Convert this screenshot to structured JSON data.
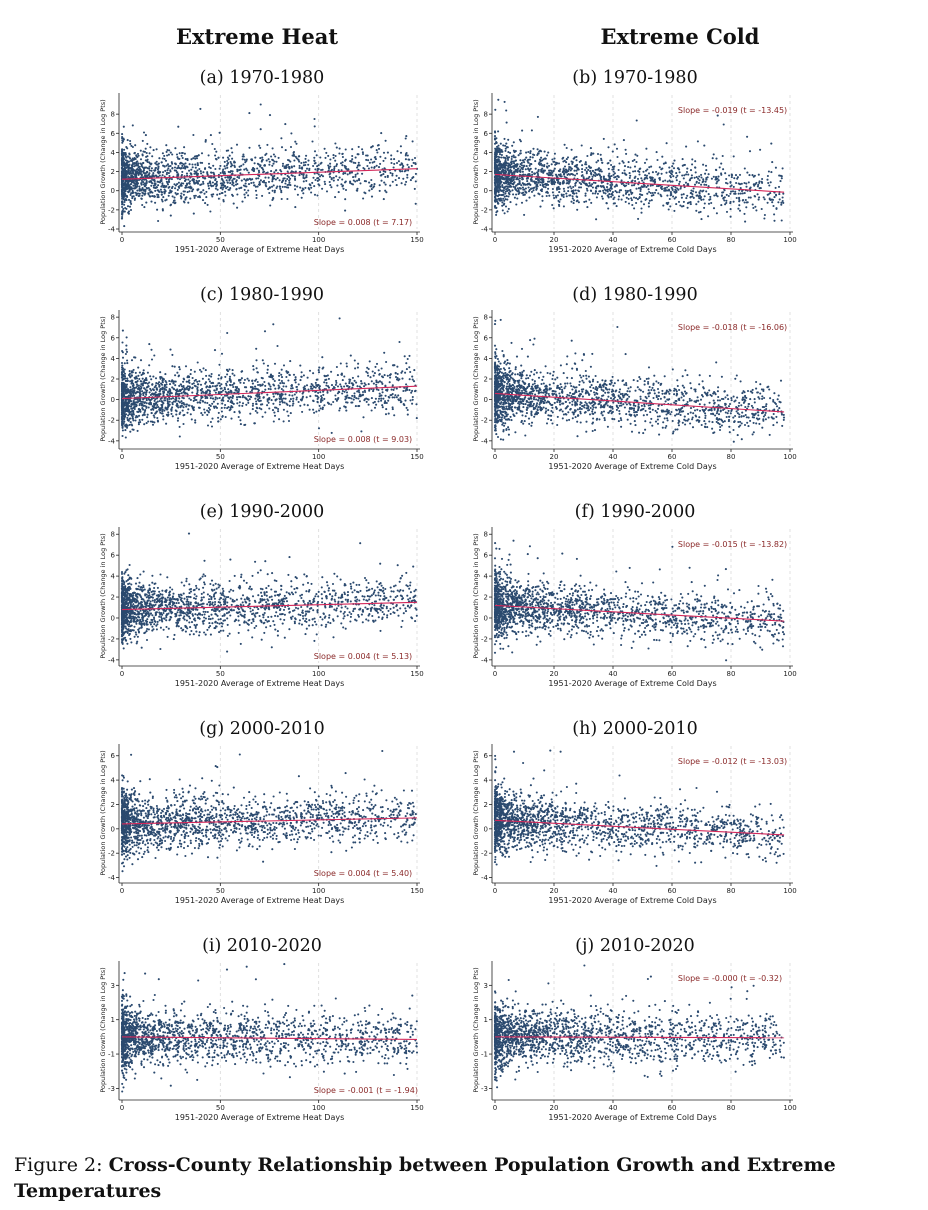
{
  "headers": {
    "heat": "Extreme Heat",
    "cold": "Extreme Cold"
  },
  "caption": {
    "prefix": "Figure 2: ",
    "title": "Cross-County Relationship between Population Growth and Extreme Temperatures"
  },
  "colors": {
    "points": "#2b4a6f",
    "fit": "#d3285a",
    "slope_text": "#8b2a2a",
    "grid": "#d9d9d9"
  },
  "chart_data": [
    {
      "id": "a",
      "type": "scatter",
      "title": "(a) 1970-1980",
      "xlabel": "1951-2020 Average of Extreme Heat Days",
      "ylabel": "Population Growth (Change in Log Pts)",
      "xlim": [
        0,
        150
      ],
      "ylim": [
        -4,
        10
      ],
      "xticks": [
        0,
        50,
        100,
        150
      ],
      "yticks": [
        -4,
        -2,
        0,
        2,
        4,
        6,
        8
      ],
      "fit": {
        "x": [
          0,
          150
        ],
        "y": [
          1.2,
          2.3
        ]
      },
      "slope_label": "Slope = 0.008 (t = 7.17)",
      "slope_pos": "bottom-right",
      "n_points": 1900
    },
    {
      "id": "b",
      "type": "scatter",
      "title": "(b) 1970-1980",
      "xlabel": "1951-2020 Average of Extreme Cold Days",
      "ylabel": "Population Growth (Change in Log Pts)",
      "xlim": [
        0,
        100
      ],
      "ylim": [
        -4,
        10
      ],
      "xticks": [
        0,
        20,
        40,
        60,
        80,
        100
      ],
      "yticks": [
        -4,
        -2,
        0,
        2,
        4,
        6,
        8
      ],
      "fit": {
        "x": [
          0,
          98
        ],
        "y": [
          1.7,
          -0.15
        ]
      },
      "slope_label": "Slope = -0.019 (t = -13.45)",
      "slope_pos": "top-right",
      "n_points": 1900
    },
    {
      "id": "c",
      "type": "scatter",
      "title": "(c) 1980-1990",
      "xlabel": "1951-2020 Average of Extreme Heat Days",
      "ylabel": "Population Growth (Change in Log Pts)",
      "xlim": [
        0,
        150
      ],
      "ylim": [
        -4.5,
        8.5
      ],
      "xticks": [
        0,
        50,
        100,
        150
      ],
      "yticks": [
        -4,
        -2,
        0,
        2,
        4,
        6,
        8
      ],
      "fit": {
        "x": [
          0,
          150
        ],
        "y": [
          0.1,
          1.3
        ]
      },
      "slope_label": "Slope = 0.008 (t = 9.03)",
      "slope_pos": "bottom-right",
      "n_points": 1900
    },
    {
      "id": "d",
      "type": "scatter",
      "title": "(d) 1980-1990",
      "xlabel": "1951-2020 Average of Extreme Cold Days",
      "ylabel": "Population Growth (Change in Log Pts)",
      "xlim": [
        0,
        100
      ],
      "ylim": [
        -4.5,
        8.5
      ],
      "xticks": [
        0,
        20,
        40,
        60,
        80,
        100
      ],
      "yticks": [
        -4,
        -2,
        0,
        2,
        4,
        6,
        8
      ],
      "fit": {
        "x": [
          0,
          98
        ],
        "y": [
          0.6,
          -1.2
        ]
      },
      "slope_label": "Slope = -0.018 (t = -16.06)",
      "slope_pos": "top-right",
      "n_points": 1900
    },
    {
      "id": "e",
      "type": "scatter",
      "title": "(e) 1990-2000",
      "xlabel": "1951-2020 Average of Extreme Heat Days",
      "ylabel": "Population Growth (Change in Log Pts)",
      "xlim": [
        0,
        150
      ],
      "ylim": [
        -4.3,
        8.5
      ],
      "xticks": [
        0,
        50,
        100,
        150
      ],
      "yticks": [
        -4,
        -2,
        0,
        2,
        4,
        6,
        8
      ],
      "fit": {
        "x": [
          0,
          150
        ],
        "y": [
          0.8,
          1.5
        ]
      },
      "slope_label": "Slope = 0.004 (t = 5.13)",
      "slope_pos": "bottom-right",
      "n_points": 1900
    },
    {
      "id": "f",
      "type": "scatter",
      "title": "(f) 1990-2000",
      "xlabel": "1951-2020 Average of Extreme Cold Days",
      "ylabel": "Population Growth (Change in Log Pts)",
      "xlim": [
        0,
        100
      ],
      "ylim": [
        -4.3,
        8.5
      ],
      "xticks": [
        0,
        20,
        40,
        60,
        80,
        100
      ],
      "yticks": [
        -4,
        -2,
        0,
        2,
        4,
        6,
        8
      ],
      "fit": {
        "x": [
          0,
          98
        ],
        "y": [
          1.2,
          -0.3
        ]
      },
      "slope_label": "Slope = -0.015 (t = -13.82)",
      "slope_pos": "top-right",
      "n_points": 1900
    },
    {
      "id": "g",
      "type": "scatter",
      "title": "(g) 2000-2010",
      "xlabel": "1951-2020 Average of Extreme Heat Days",
      "ylabel": "Population Growth (Change in Log Pts)",
      "xlim": [
        0,
        150
      ],
      "ylim": [
        -4.2,
        6.8
      ],
      "xticks": [
        0,
        50,
        100,
        150
      ],
      "yticks": [
        -4,
        -2,
        0,
        2,
        4,
        6
      ],
      "fit": {
        "x": [
          0,
          150
        ],
        "y": [
          0.4,
          0.9
        ]
      },
      "slope_label": "Slope = 0.004 (t = 5.40)",
      "slope_pos": "bottom-right",
      "n_points": 1900
    },
    {
      "id": "h",
      "type": "scatter",
      "title": "(h) 2000-2010",
      "xlabel": "1951-2020 Average of Extreme Cold Days",
      "ylabel": "Population Growth (Change in Log Pts)",
      "xlim": [
        0,
        100
      ],
      "ylim": [
        -4.2,
        6.8
      ],
      "xticks": [
        0,
        20,
        40,
        60,
        80,
        100
      ],
      "yticks": [
        -4,
        -2,
        0,
        2,
        4,
        6
      ],
      "fit": {
        "x": [
          0,
          98
        ],
        "y": [
          0.7,
          -0.5
        ]
      },
      "slope_label": "Slope = -0.012 (t = -13.03)",
      "slope_pos": "top-right",
      "n_points": 1900
    },
    {
      "id": "i",
      "type": "scatter",
      "title": "(i) 2010-2020",
      "xlabel": "1951-2020 Average of Extreme Heat Days",
      "ylabel": "Population Growth (Change in Log Pts)",
      "xlim": [
        0,
        150
      ],
      "ylim": [
        -3.5,
        4.3
      ],
      "xticks": [
        0,
        50,
        100,
        150
      ],
      "yticks": [
        -3,
        -1,
        1,
        3
      ],
      "fit": {
        "x": [
          0,
          150
        ],
        "y": [
          0.0,
          -0.15
        ]
      },
      "slope_label": "Slope = -0.001 (t = -1.94)",
      "slope_pos": "bottom-right",
      "n_points": 1900
    },
    {
      "id": "j",
      "type": "scatter",
      "title": "(j) 2010-2020",
      "xlabel": "1951-2020 Average of Extreme Cold Days",
      "ylabel": "Population Growth (Change in Log Pts)",
      "xlim": [
        0,
        100
      ],
      "ylim": [
        -3.5,
        4.3
      ],
      "xticks": [
        0,
        20,
        40,
        60,
        80,
        100
      ],
      "yticks": [
        -3,
        -1,
        1,
        3
      ],
      "fit": {
        "x": [
          0,
          98
        ],
        "y": [
          0.0,
          -0.05
        ]
      },
      "slope_label": "Slope = -0.000 (t = -0.32)",
      "slope_pos": "top-right",
      "n_points": 1900
    }
  ]
}
